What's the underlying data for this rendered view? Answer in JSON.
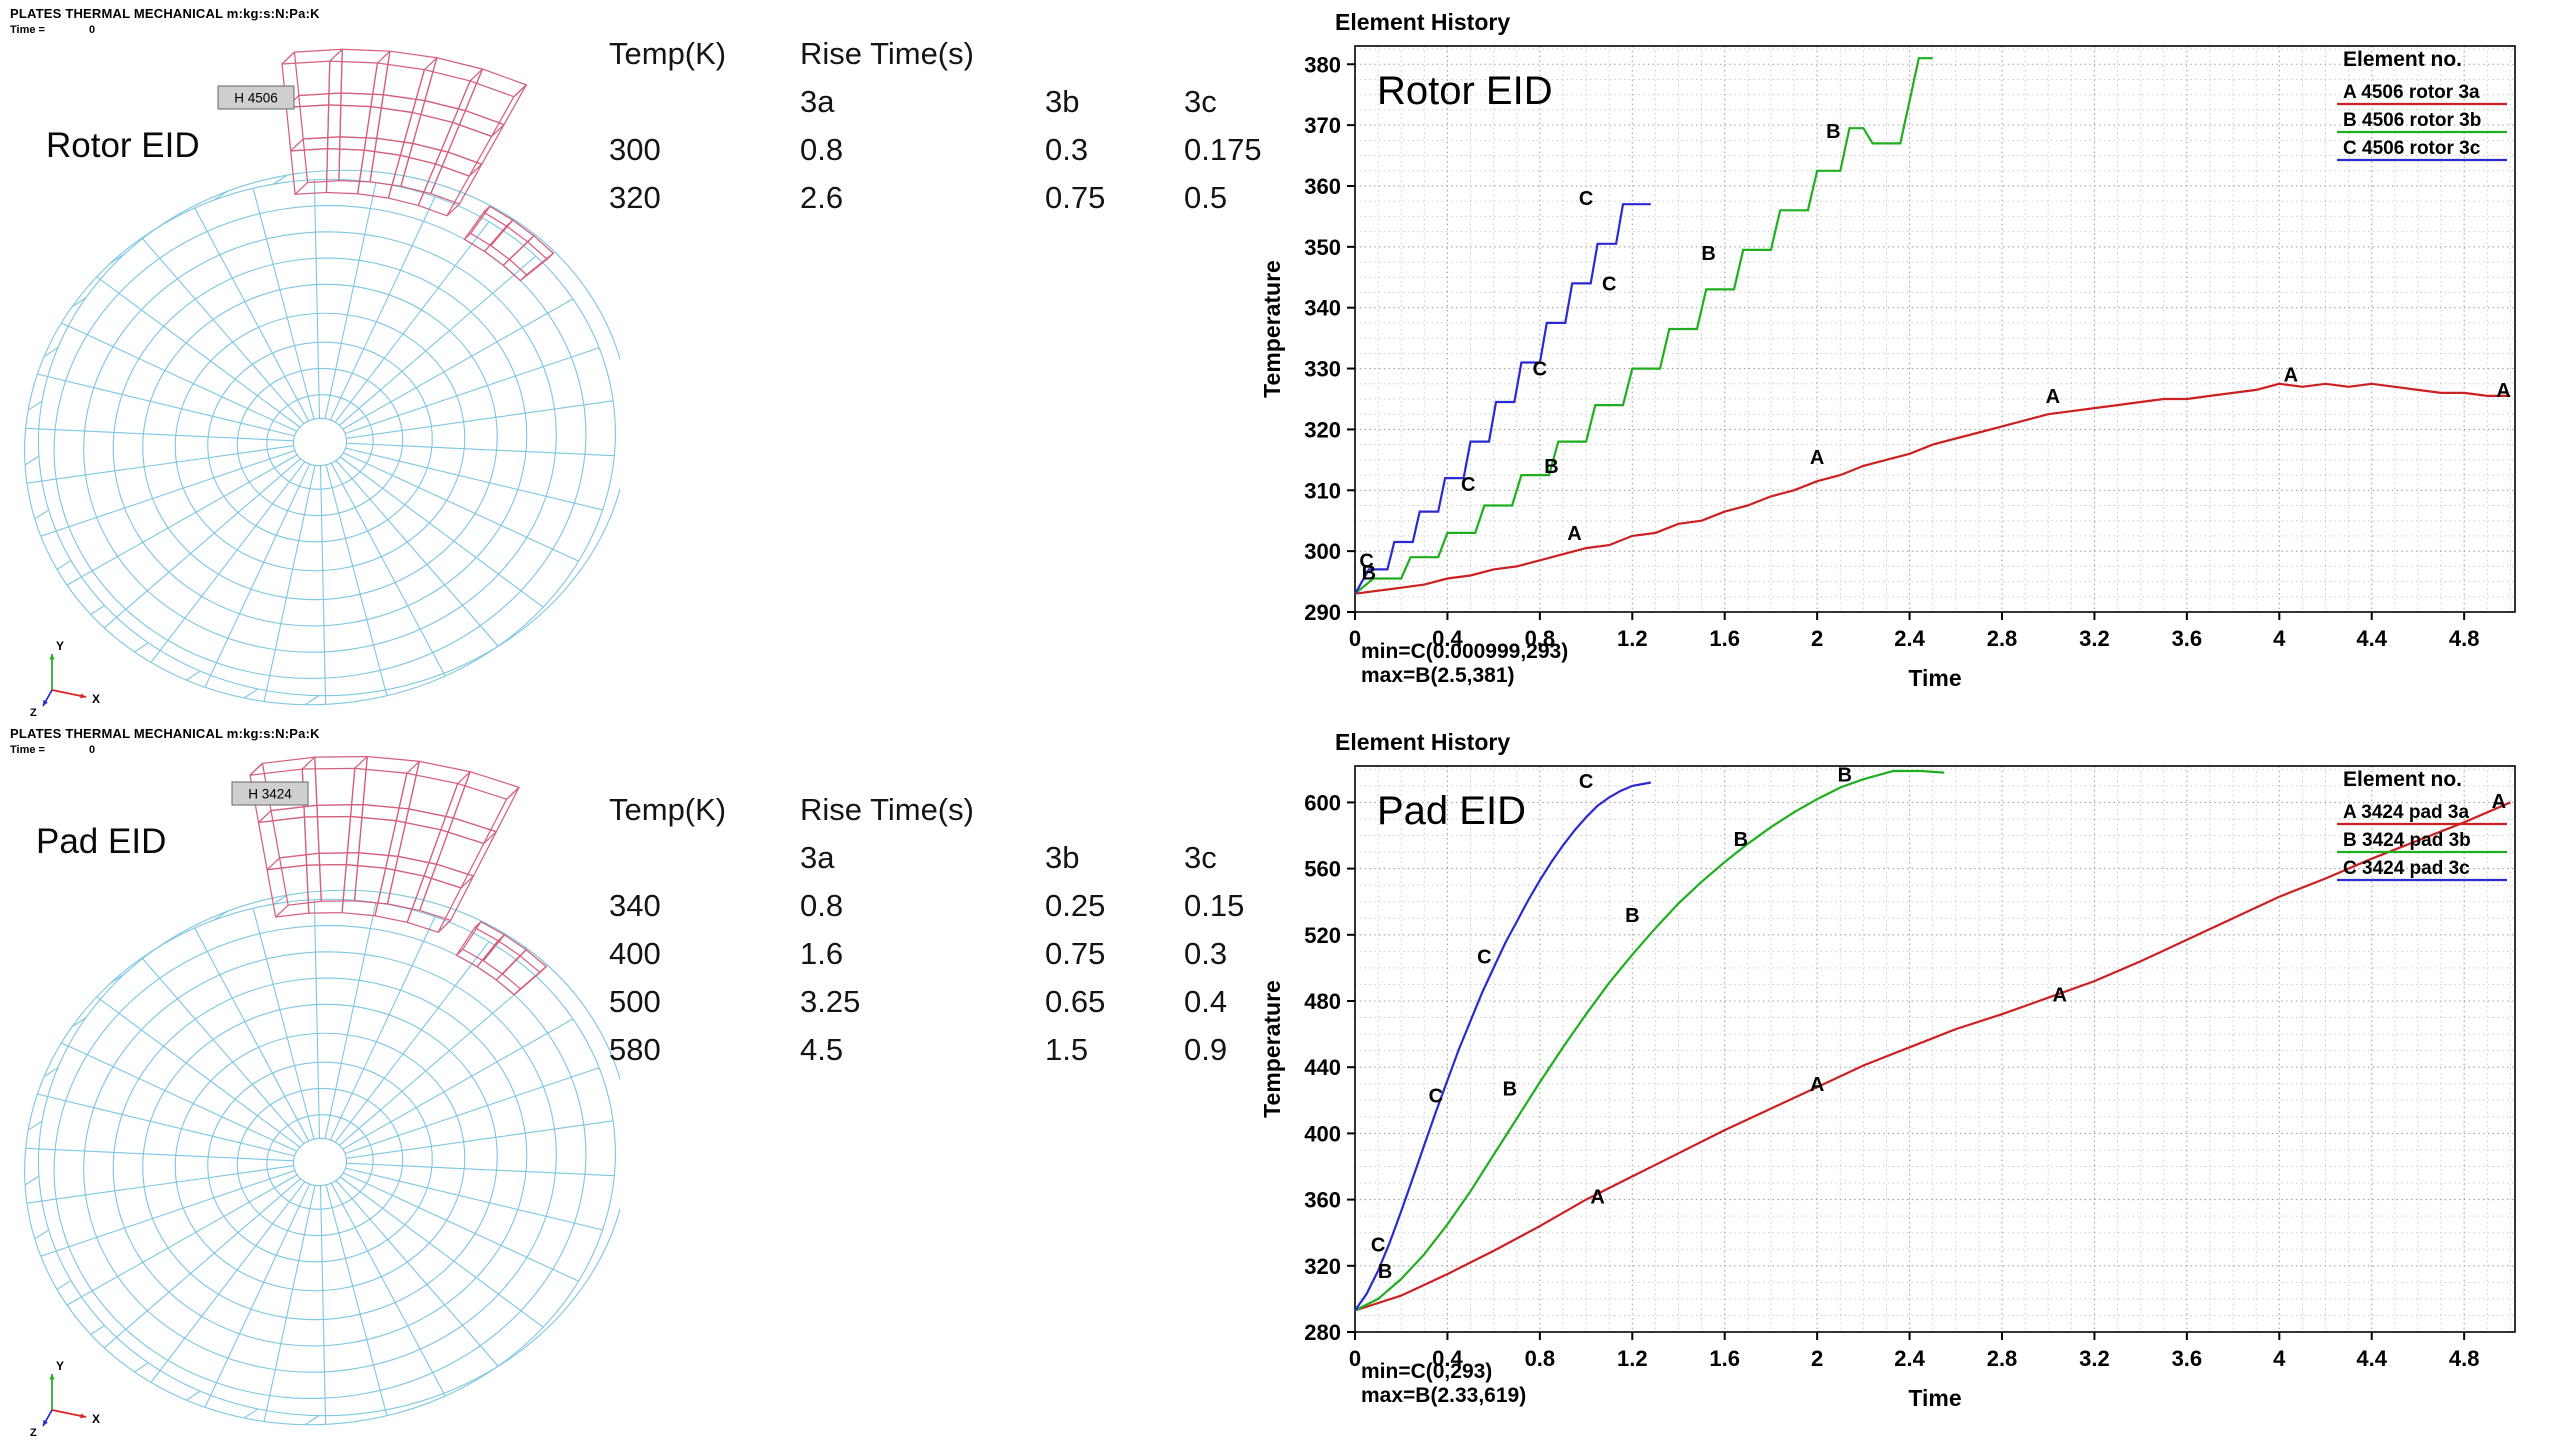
{
  "colors": {
    "mesh_wire": "#7cc6e2",
    "mesh_highlight": "#d4607f",
    "tag_bg": "#cfcfcf",
    "series_a": "#cc2020",
    "series_b": "#1fae1f",
    "series_c": "#2a2ad0",
    "triad_x": "#dd2222",
    "triad_y": "#1faa1f",
    "triad_z": "#2222dd",
    "grid_minor": "#c7c7c7",
    "grid_major": "#9b9b9b"
  },
  "rotor": {
    "header": {
      "title": "PLATES THERMAL MECHANICAL m:kg:s:N:Pa:K",
      "time_label": "Time =",
      "time_value": "0"
    },
    "eid_label": "Rotor EID",
    "element_tag": "H 4506",
    "triad": {
      "x": "X",
      "y": "Y",
      "z": "Z"
    },
    "table": {
      "temp_header": "Temp(K)",
      "rise_header": "Rise Time(s)",
      "subheaders": [
        "3a",
        "3b",
        "3c"
      ],
      "rows": [
        {
          "temp": "300",
          "values": [
            "0.8",
            "0.3",
            "0.175"
          ]
        },
        {
          "temp": "320",
          "values": [
            "2.6",
            "0.75",
            "0.5"
          ]
        }
      ]
    }
  },
  "pad": {
    "header": {
      "title": "PLATES THERMAL MECHANICAL m:kg:s:N:Pa:K",
      "time_label": "Time =",
      "time_value": "0"
    },
    "eid_label": "Pad EID",
    "element_tag": "H 3424",
    "triad": {
      "x": "X",
      "y": "Y",
      "z": "Z"
    },
    "table": {
      "temp_header": "Temp(K)",
      "rise_header": "Rise Time(s)",
      "subheaders": [
        "3a",
        "3b",
        "3c"
      ],
      "rows": [
        {
          "temp": "340",
          "values": [
            "0.8",
            "0.25",
            "0.15"
          ]
        },
        {
          "temp": "400",
          "values": [
            "1.6",
            "0.75",
            "0.3"
          ]
        },
        {
          "temp": "500",
          "values": [
            "3.25",
            "0.65",
            "0.4"
          ]
        },
        {
          "temp": "580",
          "values": [
            "4.5",
            "1.5",
            "0.9"
          ]
        }
      ]
    }
  },
  "chart_data": [
    {
      "type": "line",
      "title": "Element History",
      "corner_label": "Rotor EID",
      "xlabel": "Time",
      "ylabel": "Temperature",
      "xlim": [
        0,
        5.02
      ],
      "ylim": [
        290,
        383
      ],
      "xticks": [
        0,
        0.4,
        0.8,
        1.2,
        1.6,
        2,
        2.4,
        2.8,
        3.2,
        3.6,
        4,
        4.4,
        4.8
      ],
      "yticks": [
        290,
        300,
        310,
        320,
        330,
        340,
        350,
        360,
        370,
        380
      ],
      "x_minor_step": 0.1,
      "y_minor_step": 2.5,
      "grid": true,
      "legend_title": "Element no.",
      "legend_pos": "top-right",
      "annotations": [
        "min=C(0.000999,293)",
        "max=B(2.5,381)"
      ],
      "series": [
        {
          "letter": "A",
          "name": "4506 rotor 3a",
          "color": "#cc2020",
          "points": [
            [
              0,
              293
            ],
            [
              0.2,
              294
            ],
            [
              0.3,
              294.5
            ],
            [
              0.4,
              295.5
            ],
            [
              0.5,
              296
            ],
            [
              0.6,
              297
            ],
            [
              0.7,
              297.5
            ],
            [
              0.8,
              298.5
            ],
            [
              0.9,
              299.5
            ],
            [
              1.0,
              300.5
            ],
            [
              1.1,
              301
            ],
            [
              1.2,
              302.5
            ],
            [
              1.3,
              303
            ],
            [
              1.4,
              304.5
            ],
            [
              1.5,
              305
            ],
            [
              1.6,
              306.5
            ],
            [
              1.7,
              307.5
            ],
            [
              1.8,
              309
            ],
            [
              1.9,
              310
            ],
            [
              2.0,
              311.5
            ],
            [
              2.1,
              312.5
            ],
            [
              2.2,
              314
            ],
            [
              2.3,
              315
            ],
            [
              2.4,
              316
            ],
            [
              2.5,
              317.5
            ],
            [
              2.6,
              318.5
            ],
            [
              2.7,
              319.5
            ],
            [
              2.8,
              320.5
            ],
            [
              2.9,
              321.5
            ],
            [
              3.0,
              322.5
            ],
            [
              3.1,
              323
            ],
            [
              3.2,
              323.5
            ],
            [
              3.3,
              324
            ],
            [
              3.4,
              324.5
            ],
            [
              3.5,
              325
            ],
            [
              3.6,
              325
            ],
            [
              3.7,
              325.5
            ],
            [
              3.8,
              326
            ],
            [
              3.9,
              326.5
            ],
            [
              4.0,
              327.5
            ],
            [
              4.1,
              327
            ],
            [
              4.2,
              327.5
            ],
            [
              4.3,
              327
            ],
            [
              4.4,
              327.5
            ],
            [
              4.5,
              327
            ],
            [
              4.6,
              326.5
            ],
            [
              4.7,
              326
            ],
            [
              4.8,
              326
            ],
            [
              4.9,
              325.5
            ],
            [
              5.0,
              325.5
            ]
          ],
          "letter_markers": [
            [
              0.95,
              303
            ],
            [
              2.0,
              315.5
            ],
            [
              3.02,
              325.5
            ],
            [
              4.05,
              329
            ],
            [
              4.97,
              326.5
            ]
          ]
        },
        {
          "letter": "B",
          "name": "4506 rotor 3b",
          "color": "#1fae1f",
          "points": [
            [
              0,
              293
            ],
            [
              0.08,
              295.5
            ],
            [
              0.2,
              295.5
            ],
            [
              0.24,
              299
            ],
            [
              0.36,
              299
            ],
            [
              0.4,
              303
            ],
            [
              0.52,
              303
            ],
            [
              0.56,
              307.5
            ],
            [
              0.68,
              307.5
            ],
            [
              0.72,
              312.5
            ],
            [
              0.84,
              312.5
            ],
            [
              0.88,
              318
            ],
            [
              1.0,
              318
            ],
            [
              1.04,
              324
            ],
            [
              1.16,
              324
            ],
            [
              1.2,
              330
            ],
            [
              1.32,
              330
            ],
            [
              1.36,
              336.5
            ],
            [
              1.48,
              336.5
            ],
            [
              1.52,
              343
            ],
            [
              1.64,
              343
            ],
            [
              1.68,
              349.5
            ],
            [
              1.8,
              349.5
            ],
            [
              1.84,
              356
            ],
            [
              1.96,
              356
            ],
            [
              2.0,
              362.5
            ],
            [
              2.1,
              362.5
            ],
            [
              2.14,
              369.5
            ],
            [
              2.2,
              369.5
            ],
            [
              2.24,
              367
            ],
            [
              2.36,
              367
            ],
            [
              2.4,
              374
            ],
            [
              2.44,
              381
            ],
            [
              2.5,
              381
            ]
          ],
          "letter_markers": [
            [
              0.06,
              296.5
            ],
            [
              0.85,
              314
            ],
            [
              1.53,
              349
            ],
            [
              2.07,
              369
            ]
          ]
        },
        {
          "letter": "C",
          "name": "4506 rotor 3c",
          "color": "#2a2ad0",
          "points": [
            [
              0.001,
              293
            ],
            [
              0.06,
              297
            ],
            [
              0.14,
              297
            ],
            [
              0.17,
              301.5
            ],
            [
              0.25,
              301.5
            ],
            [
              0.28,
              306.5
            ],
            [
              0.36,
              306.5
            ],
            [
              0.39,
              312
            ],
            [
              0.47,
              312
            ],
            [
              0.5,
              318
            ],
            [
              0.58,
              318
            ],
            [
              0.61,
              324.5
            ],
            [
              0.69,
              324.5
            ],
            [
              0.72,
              331
            ],
            [
              0.8,
              331
            ],
            [
              0.83,
              337.5
            ],
            [
              0.91,
              337.5
            ],
            [
              0.94,
              344
            ],
            [
              1.02,
              344
            ],
            [
              1.05,
              350.5
            ],
            [
              1.13,
              350.5
            ],
            [
              1.16,
              357
            ],
            [
              1.28,
              357
            ]
          ],
          "letter_markers": [
            [
              0.05,
              298.5
            ],
            [
              0.49,
              311
            ],
            [
              0.8,
              330
            ],
            [
              1.1,
              344
            ],
            [
              1.0,
              358
            ]
          ]
        }
      ]
    },
    {
      "type": "line",
      "title": "Element History",
      "corner_label": "Pad EID",
      "xlabel": "Time",
      "ylabel": "Temperature",
      "xlim": [
        0,
        5.02
      ],
      "ylim": [
        280,
        622
      ],
      "xticks": [
        0,
        0.4,
        0.8,
        1.2,
        1.6,
        2,
        2.4,
        2.8,
        3.2,
        3.6,
        4,
        4.4,
        4.8
      ],
      "yticks": [
        280,
        320,
        360,
        400,
        440,
        480,
        520,
        560,
        600
      ],
      "x_minor_step": 0.1,
      "y_minor_step": 10,
      "grid": true,
      "legend_title": "Element no.",
      "legend_pos": "top-right",
      "annotations": [
        "min=C(0,293)",
        "max=B(2.33,619)"
      ],
      "series": [
        {
          "letter": "A",
          "name": "3424 pad 3a",
          "color": "#cc2020",
          "points": [
            [
              0,
              293
            ],
            [
              0.2,
              302
            ],
            [
              0.4,
              315
            ],
            [
              0.6,
              329
            ],
            [
              0.8,
              344
            ],
            [
              1.0,
              360
            ],
            [
              1.2,
              374
            ],
            [
              1.4,
              388
            ],
            [
              1.6,
              402
            ],
            [
              1.8,
              415
            ],
            [
              2.0,
              428
            ],
            [
              2.2,
              441
            ],
            [
              2.4,
              452
            ],
            [
              2.6,
              463
            ],
            [
              2.8,
              472
            ],
            [
              3.0,
              482
            ],
            [
              3.2,
              492
            ],
            [
              3.4,
              504
            ],
            [
              3.6,
              517
            ],
            [
              3.8,
              530
            ],
            [
              4.0,
              543
            ],
            [
              4.2,
              554
            ],
            [
              4.4,
              566
            ],
            [
              4.6,
              577
            ],
            [
              4.8,
              588
            ],
            [
              5.0,
              600
            ]
          ],
          "letter_markers": [
            [
              1.05,
              362
            ],
            [
              2.0,
              430
            ],
            [
              3.05,
              484
            ],
            [
              4.95,
              601
            ]
          ]
        },
        {
          "letter": "B",
          "name": "3424 pad 3b",
          "color": "#1fae1f",
          "points": [
            [
              0,
              293
            ],
            [
              0.1,
              300
            ],
            [
              0.2,
              312
            ],
            [
              0.3,
              327
            ],
            [
              0.4,
              345
            ],
            [
              0.5,
              365
            ],
            [
              0.6,
              387
            ],
            [
              0.7,
              409
            ],
            [
              0.8,
              431
            ],
            [
              0.9,
              452
            ],
            [
              1.0,
              472
            ],
            [
              1.1,
              491
            ],
            [
              1.2,
              508
            ],
            [
              1.3,
              524
            ],
            [
              1.4,
              539
            ],
            [
              1.5,
              552
            ],
            [
              1.6,
              564
            ],
            [
              1.7,
              575
            ],
            [
              1.8,
              585
            ],
            [
              1.9,
              594
            ],
            [
              2.0,
              602
            ],
            [
              2.1,
              609
            ],
            [
              2.2,
              614
            ],
            [
              2.33,
              619
            ],
            [
              2.45,
              619
            ],
            [
              2.55,
              618
            ]
          ],
          "letter_markers": [
            [
              0.13,
              317
            ],
            [
              0.67,
              427
            ],
            [
              1.2,
              532
            ],
            [
              1.67,
              578
            ],
            [
              2.12,
              617
            ]
          ]
        },
        {
          "letter": "C",
          "name": "3424 pad 3c",
          "color": "#2a2ad0",
          "points": [
            [
              0,
              293
            ],
            [
              0.05,
              303
            ],
            [
              0.1,
              317
            ],
            [
              0.15,
              334
            ],
            [
              0.2,
              353
            ],
            [
              0.25,
              373
            ],
            [
              0.3,
              393
            ],
            [
              0.35,
              413
            ],
            [
              0.4,
              432
            ],
            [
              0.45,
              451
            ],
            [
              0.5,
              468
            ],
            [
              0.55,
              485
            ],
            [
              0.6,
              500
            ],
            [
              0.65,
              515
            ],
            [
              0.7,
              528
            ],
            [
              0.75,
              541
            ],
            [
              0.8,
              553
            ],
            [
              0.85,
              564
            ],
            [
              0.9,
              574
            ],
            [
              0.95,
              583
            ],
            [
              1.0,
              591
            ],
            [
              1.05,
              598
            ],
            [
              1.1,
              603
            ],
            [
              1.15,
              607
            ],
            [
              1.2,
              610
            ],
            [
              1.28,
              612
            ]
          ],
          "letter_markers": [
            [
              0.1,
              333
            ],
            [
              0.35,
              423
            ],
            [
              0.56,
              507
            ],
            [
              1.0,
              613
            ]
          ]
        }
      ]
    }
  ]
}
